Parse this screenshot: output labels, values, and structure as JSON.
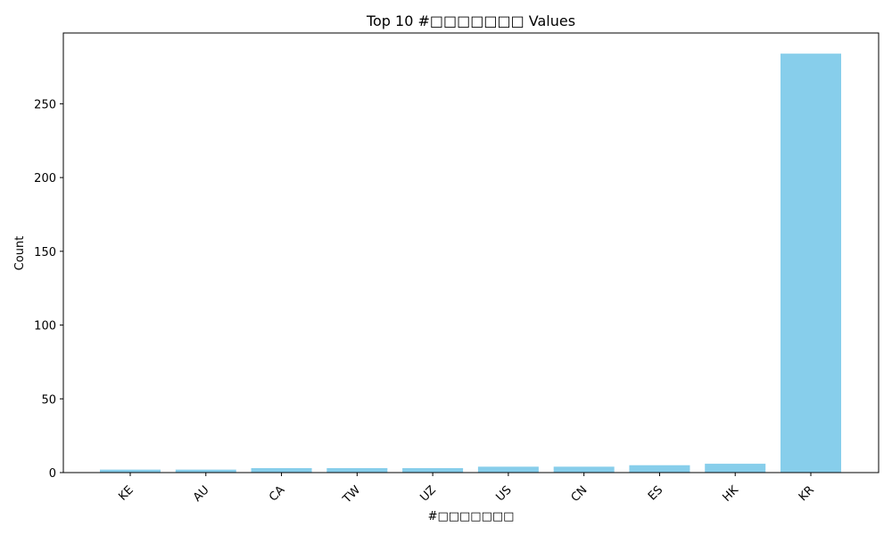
{
  "chart_data": {
    "type": "bar",
    "title": "Top 10 #□□□□□□□ Values",
    "xlabel": "#□□□□□□□",
    "ylabel": "Count",
    "categories": [
      "KE",
      "AU",
      "CA",
      "TW",
      "UZ",
      "US",
      "CN",
      "ES",
      "HK",
      "KR"
    ],
    "values": [
      2,
      2,
      3,
      3,
      3,
      4,
      4,
      5,
      6,
      284
    ],
    "ylim": [
      0,
      298
    ],
    "yticks": [
      0,
      50,
      100,
      150,
      200,
      250
    ],
    "ytick_labels": [
      "0",
      "50",
      "100",
      "150",
      "200",
      "250"
    ],
    "bar_color": "#87ceeb",
    "xtick_rotation_deg": 45,
    "grid": false
  }
}
